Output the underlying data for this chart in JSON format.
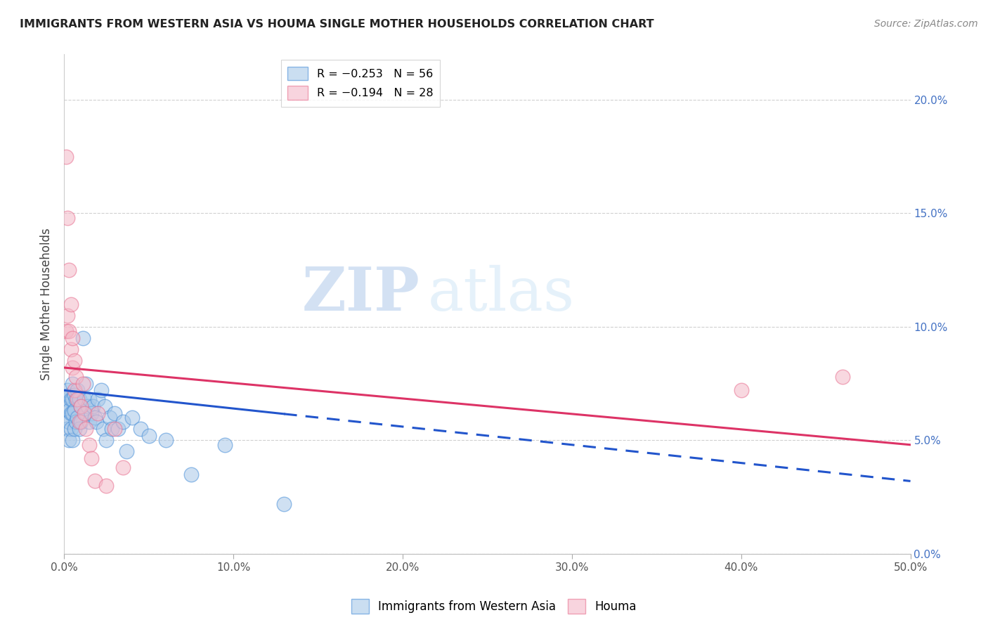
{
  "title": "IMMIGRANTS FROM WESTERN ASIA VS HOUMA SINGLE MOTHER HOUSEHOLDS CORRELATION CHART",
  "source": "Source: ZipAtlas.com",
  "ylabel": "Single Mother Households",
  "legend_blue_r": "R = −0.253",
  "legend_blue_n": "N = 56",
  "legend_pink_r": "R = −0.194",
  "legend_pink_n": "N = 28",
  "xmin": 0.0,
  "xmax": 0.5,
  "ymin": 0.0,
  "ymax": 0.22,
  "yticks": [
    0.0,
    0.05,
    0.1,
    0.15,
    0.2
  ],
  "ytick_labels": [
    "0.0%",
    "5.0%",
    "10.0%",
    "15.0%",
    "20.0%"
  ],
  "xticks": [
    0.0,
    0.1,
    0.2,
    0.3,
    0.4,
    0.5
  ],
  "xtick_labels": [
    "0.0%",
    "10.0%",
    "20.0%",
    "30.0%",
    "40.0%",
    "50.0%"
  ],
  "blue_scatter_x": [
    0.001,
    0.001,
    0.002,
    0.002,
    0.002,
    0.003,
    0.003,
    0.003,
    0.003,
    0.004,
    0.004,
    0.004,
    0.005,
    0.005,
    0.005,
    0.005,
    0.006,
    0.006,
    0.006,
    0.007,
    0.007,
    0.008,
    0.008,
    0.009,
    0.009,
    0.01,
    0.01,
    0.011,
    0.012,
    0.013,
    0.013,
    0.014,
    0.015,
    0.015,
    0.016,
    0.017,
    0.018,
    0.019,
    0.02,
    0.022,
    0.023,
    0.024,
    0.025,
    0.027,
    0.028,
    0.03,
    0.032,
    0.035,
    0.037,
    0.04,
    0.045,
    0.05,
    0.06,
    0.075,
    0.095,
    0.13
  ],
  "blue_scatter_y": [
    0.068,
    0.06,
    0.072,
    0.065,
    0.055,
    0.07,
    0.063,
    0.058,
    0.05,
    0.068,
    0.062,
    0.055,
    0.075,
    0.068,
    0.062,
    0.05,
    0.07,
    0.063,
    0.055,
    0.068,
    0.058,
    0.072,
    0.06,
    0.068,
    0.055,
    0.065,
    0.058,
    0.095,
    0.068,
    0.075,
    0.062,
    0.065,
    0.068,
    0.058,
    0.062,
    0.065,
    0.06,
    0.058,
    0.068,
    0.072,
    0.055,
    0.065,
    0.05,
    0.06,
    0.055,
    0.062,
    0.055,
    0.058,
    0.045,
    0.06,
    0.055,
    0.052,
    0.05,
    0.035,
    0.048,
    0.022
  ],
  "pink_scatter_x": [
    0.001,
    0.001,
    0.002,
    0.002,
    0.003,
    0.003,
    0.004,
    0.004,
    0.005,
    0.005,
    0.006,
    0.006,
    0.007,
    0.008,
    0.009,
    0.01,
    0.011,
    0.012,
    0.013,
    0.015,
    0.016,
    0.018,
    0.02,
    0.025,
    0.03,
    0.035,
    0.4,
    0.46
  ],
  "pink_scatter_y": [
    0.175,
    0.098,
    0.148,
    0.105,
    0.125,
    0.098,
    0.11,
    0.09,
    0.095,
    0.082,
    0.085,
    0.072,
    0.078,
    0.068,
    0.058,
    0.065,
    0.075,
    0.062,
    0.055,
    0.048,
    0.042,
    0.032,
    0.062,
    0.03,
    0.055,
    0.038,
    0.072,
    0.078
  ],
  "blue_color": "#a8c8e8",
  "pink_color": "#f4b8c8",
  "blue_edge_color": "#4a90d9",
  "pink_edge_color": "#e87090",
  "blue_line_color": "#2255cc",
  "pink_line_color": "#dd3366",
  "blue_trend_start": 0.0,
  "blue_trend_solid_end": 0.13,
  "blue_trend_dashed_end": 0.5,
  "blue_trend_y0": 0.072,
  "blue_trend_y_solid_end": 0.048,
  "blue_trend_y_dashed_end": 0.032,
  "pink_trend_start": 0.0,
  "pink_trend_end": 0.5,
  "pink_trend_y0": 0.082,
  "pink_trend_y_end": 0.048,
  "watermark_zip": "ZIP",
  "watermark_atlas": "atlas",
  "background_color": "#ffffff",
  "grid_color": "#d0d0d0"
}
